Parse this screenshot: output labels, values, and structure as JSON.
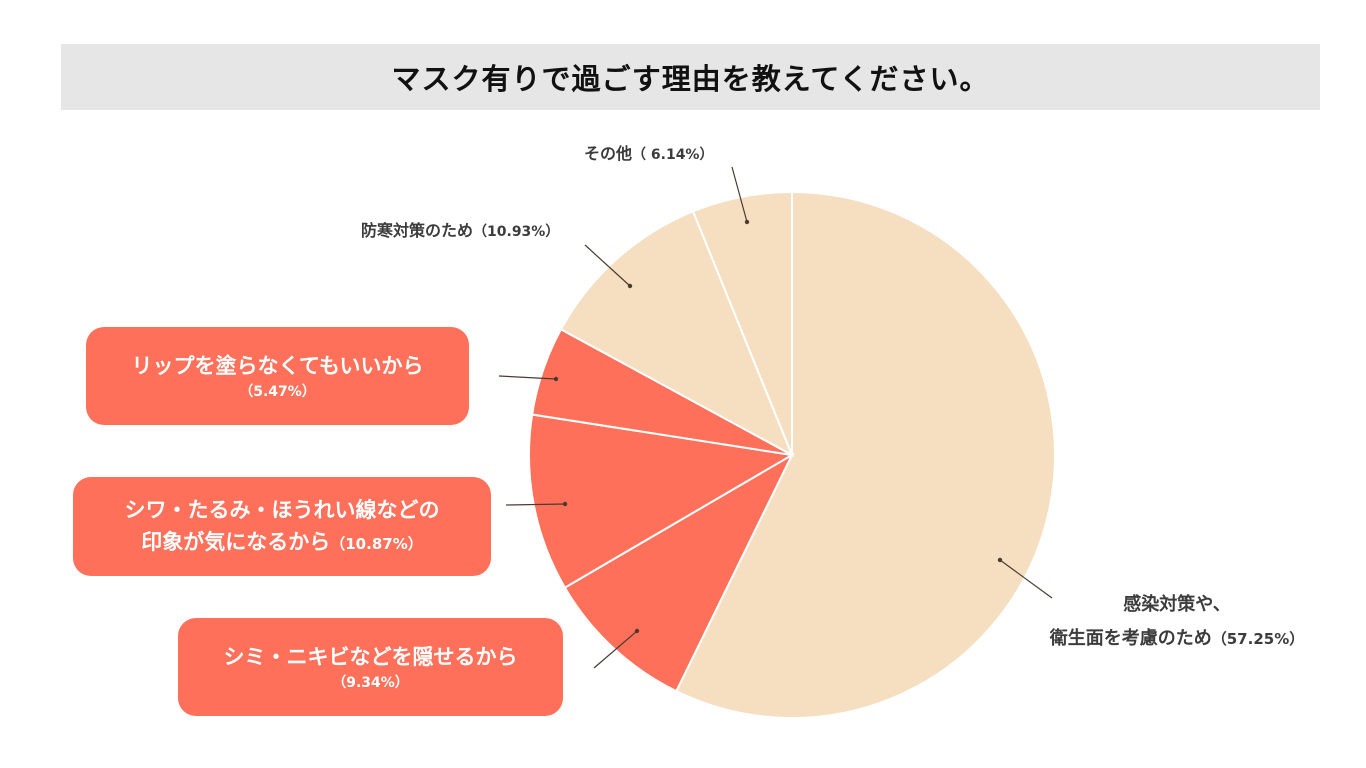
{
  "chart_data": {
    "type": "pie",
    "title": "マスク有りで過ごす理由を教えてください。",
    "start_angle_deg": 0,
    "direction": "clockwise",
    "slices": [
      {
        "label": "感染対策や、衛生面を考慮のため",
        "label_line1": "感染対策や、",
        "label_line2": "衛生面を考慮のため",
        "value": 57.25,
        "pct_text": "（57.25%）",
        "color": "#f5dfc0"
      },
      {
        "label": "シミ・ニキビなどを隠せるから",
        "value": 9.34,
        "pct_text": "（9.34%）",
        "color": "#ff705a"
      },
      {
        "label": "シワ・たるみ・ほうれい線などの印象が気になるから",
        "label_line1": "シワ・たるみ・ほうれい線などの",
        "label_line2": "印象が気になるから",
        "value": 10.87,
        "pct_text": "（10.87%）",
        "color": "#ff705a"
      },
      {
        "label": "リップを塗らなくてもいいから",
        "value": 5.47,
        "pct_text": "（5.47%）",
        "color": "#ff705a"
      },
      {
        "label": "防寒対策のため",
        "value": 10.93,
        "pct_text": "（10.93%）",
        "color": "#f5dfc0"
      },
      {
        "label": "その他",
        "value": 6.14,
        "pct_text": "（ 6.14%）",
        "color": "#f5dfc0"
      }
    ]
  }
}
